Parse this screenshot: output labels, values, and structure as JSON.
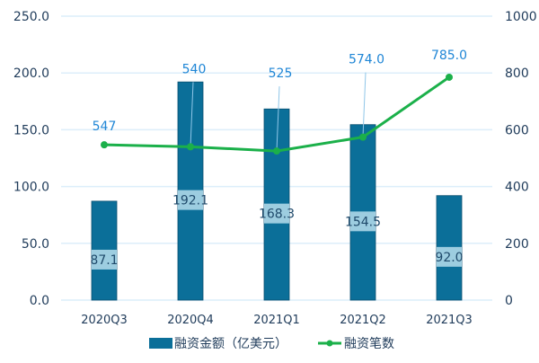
{
  "chart_data": {
    "type": "bar+line",
    "categories": [
      "2020Q3",
      "2020Q4",
      "2021Q1",
      "2021Q2",
      "2021Q3"
    ],
    "series": [
      {
        "name": "融资金额（亿美元）",
        "type": "bar",
        "axis": "left",
        "values": [
          87.1,
          192.1,
          168.3,
          154.5,
          92.0
        ],
        "labels": [
          "87.1",
          "192.1",
          "168.3",
          "154.5",
          "92.0"
        ],
        "color": "#0b6f99"
      },
      {
        "name": "融资笔数",
        "type": "line",
        "axis": "right",
        "values": [
          547,
          540,
          525,
          574,
          785
        ],
        "labels": [
          "547",
          "540",
          "525",
          "574.0",
          "785.0"
        ],
        "color": "#1bb04a"
      }
    ],
    "left_axis": {
      "ylim": [
        0,
        250
      ],
      "ticks": [
        "0.0",
        "50.0",
        "100.0",
        "150.0",
        "200.0",
        "250.0"
      ]
    },
    "right_axis": {
      "ylim": [
        0,
        1000
      ],
      "ticks": [
        "0",
        "200",
        "400",
        "600",
        "800",
        "1000"
      ]
    },
    "grid": true,
    "legend_position": "bottom",
    "colors": {
      "axis_text": "#1f3b5a",
      "line_label": "#1f86d6",
      "bar_label_bg": "#9dcde0",
      "grid": "#dceefa"
    }
  }
}
